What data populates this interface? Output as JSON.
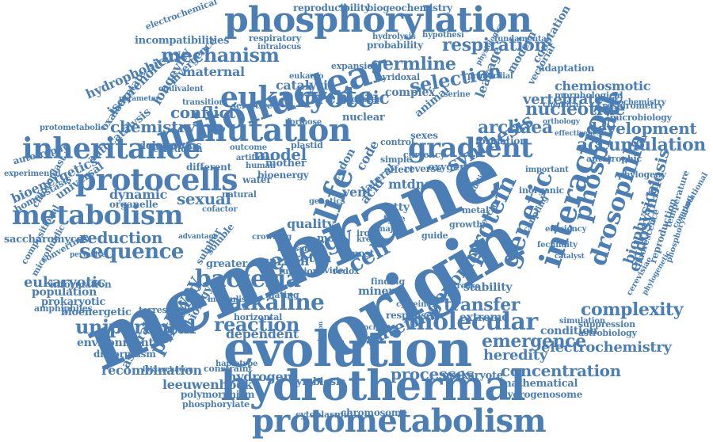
{
  "colors": {
    "word": "#4a7eb5",
    "background": "#ffffff"
  },
  "words": [
    "membrane",
    "evolution",
    "origin",
    "hydrothermal",
    "mitonuclear",
    "phosphorylation",
    "protometabolism",
    "mutation",
    "inheritance",
    "eukaryote",
    "life",
    "protocells",
    "metabolism",
    "gradient",
    "interaction",
    "genetic",
    "protein",
    "bacteria",
    "phosphate",
    "drosophila",
    "energy",
    "cell",
    "alkaline",
    "molecular",
    "sequence",
    "synthesis",
    "mechanism",
    "selection",
    "germline",
    "respiration",
    "prebiotic",
    "nucleotide",
    "archaea",
    "accumulation",
    "development",
    "chemistry",
    "reduction",
    "sexual",
    "model",
    "conflict",
    "uniparental",
    "reaction",
    "transfer",
    "complexity",
    "emergence",
    "concentration",
    "endosymbiosis",
    "heredity",
    "electrochemistry",
    "processes",
    "recombination",
    "leeuwenhoek",
    "hydrogen",
    "biophysical",
    "pathway",
    "paternal",
    "genome",
    "chemiosmotic",
    "vertebrate",
    "fixation",
    "dynamic",
    "carbon",
    "proton",
    "quality",
    "vent",
    "fatty",
    "mtdna",
    "hydrophobicity",
    "longevity",
    "isoprenoid",
    "bioenergetics",
    "saccharomyces",
    "prokaryote",
    "symbiosis",
    "chromosome",
    "cytoplasmic",
    "reproducibility",
    "biogeochemistry",
    "incompatibilities",
    "maternal",
    "catalysis",
    "leakage",
    "deleterious",
    "homeostasis",
    "autocatalysis",
    "oxaloacetate",
    "eukaryotic",
    "organelle",
    "population",
    "prokaryotic",
    "bioenergetic",
    "environment",
    "dimorphism",
    "asparate",
    "biology",
    "dependent",
    "stability",
    "condition",
    "extreme",
    "mineral",
    "mathematical",
    "hydrogenosome",
    "polymorphism",
    "phosphorylate",
    "microbiology",
    "astrobiology",
    "suppression",
    "fluorescence",
    "temperature",
    "reproduction",
    "phosphorylating",
    "autotrophic",
    "formation",
    "bioenergy",
    "nuclear",
    "mother",
    "plastid",
    "ferredoxin",
    "different",
    "universal",
    "chloroplast",
    "autotrophy",
    "information",
    "amphiphiles",
    "terrestrial",
    "horizontal",
    "constraint",
    "haplotype",
    "mating",
    "margulis",
    "function",
    "divide",
    "redox",
    "finding",
    "response",
    "cysteine",
    "currency",
    "oxygen",
    "growth",
    "guide",
    "major",
    "type",
    "iron",
    "krebs",
    "more",
    "most",
    "water",
    "greater",
    "soluble",
    "natural",
    "complex",
    "control",
    "effect",
    "reverse",
    "expansion",
    "probability",
    "respiratory",
    "hydrolysis",
    "hypothesi",
    "fundamental",
    "adaptation",
    "primordial",
    "modern",
    "cooptation",
    "morphological",
    "respirometry",
    "biochemistry",
    "vectorial",
    "codon",
    "lateral",
    "acid",
    "code",
    "sexes",
    "animal",
    "pyridoxal",
    "selective",
    "formose",
    "thioester",
    "transition",
    "protometabolic",
    "experimental",
    "equivalent",
    "converting",
    "compositional",
    "microfluidic",
    "sulphur",
    "electrochemical",
    "lokiarchaeon",
    "transmission",
    "crowding",
    "coupling",
    "fecundity",
    "efficiency",
    "phylogeny",
    "computational",
    "inorganic",
    "important",
    "serine",
    "catalyst",
    "simulation",
    "divergence",
    "physiological",
    "metal",
    "reactor",
    "ribosome",
    "intralocus",
    "eukaryo",
    "parameter",
    "cofactor",
    "artificial",
    "human",
    "outcome",
    "increase",
    "phylogenetic",
    "cerevisiae",
    "orthology",
    "effectiveness",
    "chemical",
    "pervasive",
    "advantage",
    "principle",
    "multiple",
    "simple",
    "genetics"
  ]
}
